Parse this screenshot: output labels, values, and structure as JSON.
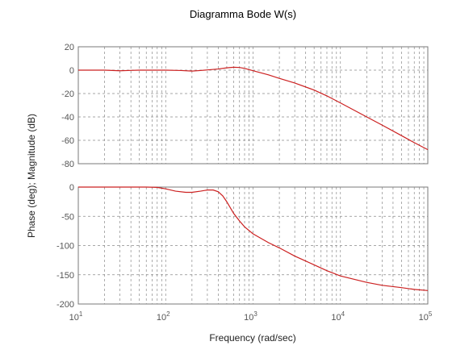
{
  "chart_data": [
    {
      "type": "line",
      "panel": "magnitude",
      "title": "Diagramma Bode W(s)",
      "xscale": "log",
      "xlim": [
        10,
        100000
      ],
      "ylim": [
        -80,
        20
      ],
      "yticks": [
        20,
        0,
        -20,
        -40,
        -60,
        -80
      ],
      "grid": true,
      "series": [
        {
          "color": "#cc2020",
          "x": [
            10,
            20,
            30,
            40,
            50,
            60,
            80,
            100,
            150,
            200,
            250,
            300,
            400,
            500,
            600,
            700,
            800,
            1000,
            1500,
            2000,
            3000,
            5000,
            7000,
            10000,
            20000,
            30000,
            50000,
            70000,
            100000
          ],
          "y": [
            0,
            0,
            -0.5,
            -0.2,
            0,
            0,
            0,
            0,
            -0.3,
            -0.8,
            -0.3,
            0.2,
            1,
            2,
            2.5,
            2.3,
            1.5,
            -0.5,
            -4,
            -7,
            -11,
            -17,
            -22,
            -28,
            -40,
            -47,
            -56,
            -62,
            -68
          ]
        }
      ]
    },
    {
      "type": "line",
      "panel": "phase",
      "xscale": "log",
      "xlim": [
        10,
        100000
      ],
      "ylim": [
        -200,
        0
      ],
      "yticks": [
        0,
        -50,
        -100,
        -150,
        -200
      ],
      "xticks": [
        "10^1",
        "10^2",
        "10^3",
        "10^4",
        "10^5"
      ],
      "xlabel": "Frequency (rad/sec)",
      "ylabel": "Phase (deg); Magnitude (dB)",
      "grid": true,
      "series": [
        {
          "color": "#cc2020",
          "x": [
            10,
            20,
            40,
            60,
            80,
            100,
            130,
            170,
            200,
            250,
            300,
            350,
            400,
            450,
            500,
            600,
            700,
            800,
            1000,
            1500,
            2000,
            3000,
            5000,
            7000,
            10000,
            20000,
            30000,
            50000,
            70000,
            100000
          ],
          "y": [
            0,
            0,
            0,
            0,
            -0.5,
            -3,
            -7,
            -9,
            -9,
            -7,
            -5,
            -5,
            -8,
            -15,
            -25,
            -45,
            -58,
            -68,
            -80,
            -95,
            -104,
            -118,
            -133,
            -143,
            -152,
            -163,
            -168,
            -172,
            -175,
            -177
          ]
        }
      ]
    }
  ]
}
